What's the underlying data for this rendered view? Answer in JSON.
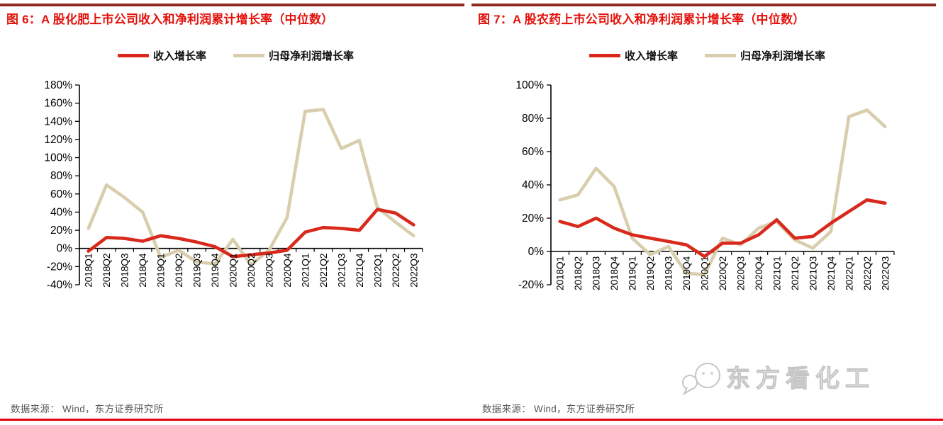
{
  "colors": {
    "title_red": "#e3120b",
    "top_rule_dark_red": "#8e2a21",
    "bottom_rule_red": "#e60012",
    "revenue_line_red": "#d9291c",
    "profit_line_beige": "#d8ceae",
    "axis_black": "#000000",
    "footer_gray": "#595757",
    "watermark_gray": "#c6c6c6"
  },
  "footer": {
    "source_note": "数据来源： Wind，东方证券研究所"
  },
  "watermark": {
    "icon": "wechat-logo",
    "text": "东方看化工"
  },
  "chart_data": [
    {
      "type": "line",
      "title": "图 6：A 股化肥上市公司收入和净利润累计增长率（中位数）",
      "categories": [
        "2018Q1",
        "2018Q2",
        "2018Q3",
        "2018Q4",
        "2019Q1",
        "2019Q2",
        "2019Q3",
        "2019Q4",
        "2020Q1",
        "2020Q2",
        "2020Q3",
        "2020Q4",
        "2021Q1",
        "2021Q2",
        "2021Q3",
        "2021Q4",
        "2022Q1",
        "2022Q2",
        "2022Q3"
      ],
      "series": [
        {
          "name": "收入增长率",
          "color": "#d9291c",
          "values": [
            -3,
            12,
            11,
            8,
            14,
            11,
            7,
            2,
            -9,
            -7,
            -5,
            -2,
            18,
            23,
            22,
            20,
            43,
            39,
            26
          ]
        },
        {
          "name": "归母净利润增长率",
          "color": "#d8ceae",
          "values": [
            22,
            70,
            56,
            40,
            -10,
            -2,
            -15,
            -17,
            10,
            -18,
            -2,
            34,
            151,
            153,
            110,
            119,
            45,
            29,
            14
          ]
        }
      ],
      "ylim": [
        -40,
        180
      ],
      "ytick_step": 20,
      "ytick_suffix": "%",
      "grid": false,
      "legend_position": "top"
    },
    {
      "type": "line",
      "title": "图 7：A 股农药上市公司收入和净利润累计增长率（中位数）",
      "categories": [
        "2018Q1",
        "2018Q2",
        "2018Q3",
        "2018Q4",
        "2019Q1",
        "2019Q2",
        "2019Q3",
        "2019Q4",
        "2020Q1",
        "2020Q2",
        "2020Q3",
        "2020Q4",
        "2021Q1",
        "2021Q2",
        "2021Q3",
        "2021Q4",
        "2022Q1",
        "2022Q2",
        "2022Q3"
      ],
      "series": [
        {
          "name": "收入增长率",
          "color": "#d9291c",
          "values": [
            18,
            15,
            20,
            14,
            10,
            8,
            6,
            4,
            -3,
            5,
            5,
            10,
            19,
            8,
            9,
            17,
            24,
            31,
            29
          ]
        },
        {
          "name": "归母净利润增长率",
          "color": "#d8ceae",
          "values": [
            31,
            34,
            50,
            39,
            8,
            -2,
            3,
            -13,
            -14,
            8,
            4,
            14,
            18,
            7,
            2,
            12,
            81,
            85,
            75
          ]
        }
      ],
      "ylim": [
        -20,
        100
      ],
      "ytick_step": 20,
      "ytick_suffix": "%",
      "grid": false,
      "legend_position": "top"
    }
  ]
}
